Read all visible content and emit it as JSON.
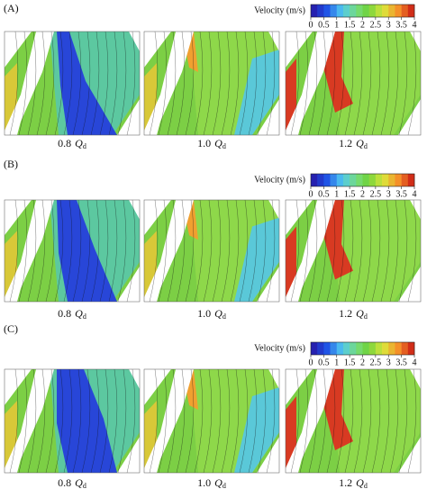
{
  "panels": [
    {
      "label": "(A)",
      "colorbar": {
        "title": "Velocity (m/s)",
        "lim": [
          0,
          4
        ],
        "ticks": [
          0,
          0.5,
          1,
          1.5,
          2,
          2.5,
          3,
          3.5,
          4
        ]
      },
      "plots": [
        {
          "flow": "0.8",
          "symbol": "Q",
          "subscript": "d"
        },
        {
          "flow": "1.0",
          "symbol": "Q",
          "subscript": "d"
        },
        {
          "flow": "1.2",
          "symbol": "Q",
          "subscript": "d"
        }
      ]
    },
    {
      "label": "(B)",
      "colorbar": {
        "title": "Velocity (m/s)",
        "lim": [
          0,
          4
        ],
        "ticks": [
          0,
          0.5,
          1,
          1.5,
          2,
          2.5,
          3,
          3.5,
          4
        ]
      },
      "plots": [
        {
          "flow": "0.8",
          "symbol": "Q",
          "subscript": "d"
        },
        {
          "flow": "1.0",
          "symbol": "Q",
          "subscript": "d"
        },
        {
          "flow": "1.2",
          "symbol": "Q",
          "subscript": "d"
        }
      ]
    },
    {
      "label": "(C)",
      "colorbar": {
        "title": "Velocity (m/s)",
        "lim": [
          0,
          4
        ],
        "ticks": [
          0,
          0.5,
          1,
          1.5,
          2,
          2.5,
          3,
          3.5,
          4
        ]
      },
      "plots": [
        {
          "flow": "0.8",
          "symbol": "Q",
          "subscript": "d"
        },
        {
          "flow": "1.0",
          "symbol": "Q",
          "subscript": "d"
        },
        {
          "flow": "1.2",
          "symbol": "Q",
          "subscript": "d"
        }
      ]
    }
  ]
}
